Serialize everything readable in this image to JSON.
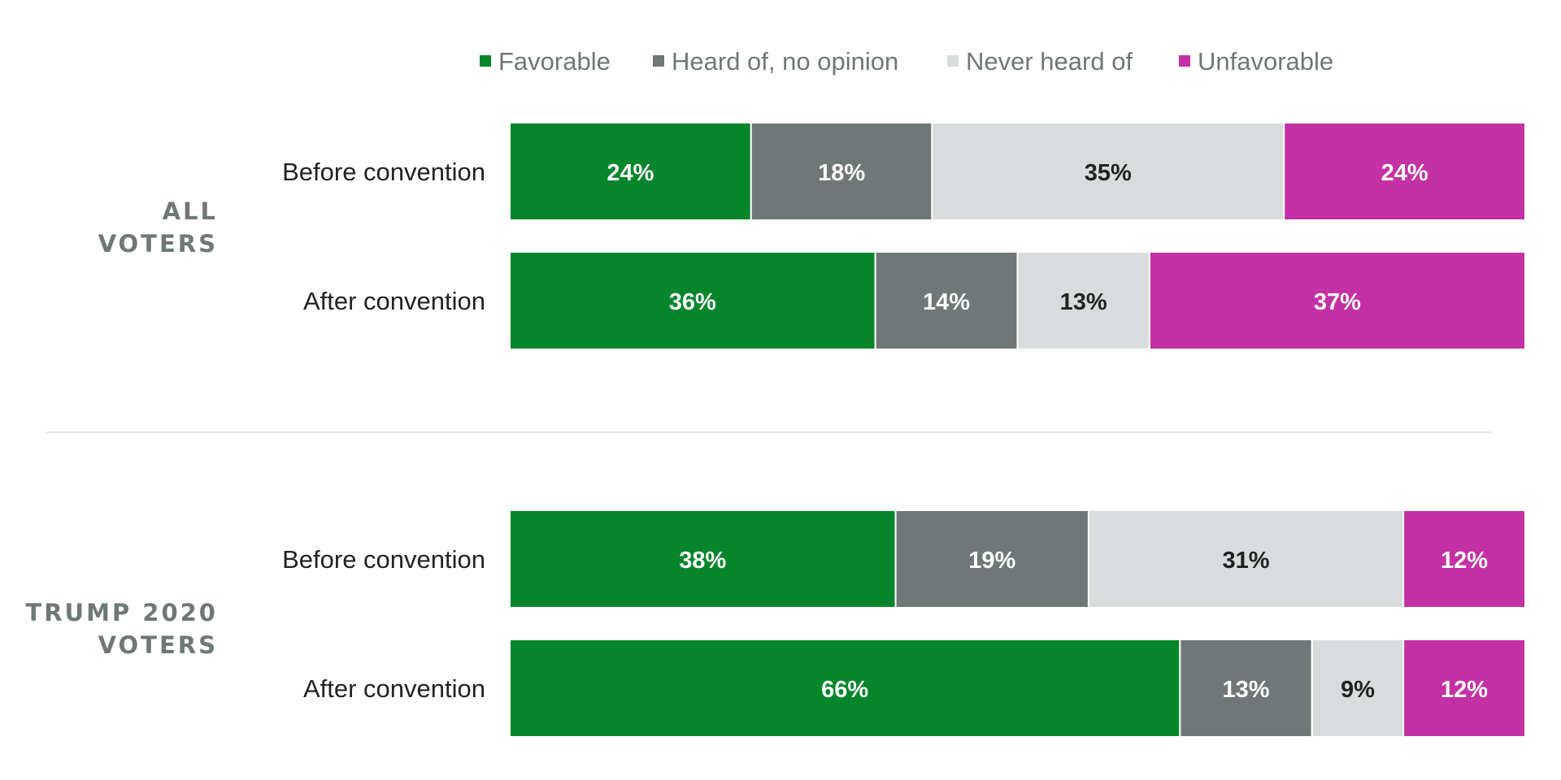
{
  "chart_data": {
    "type": "bar",
    "orientation": "horizontal",
    "stacked": true,
    "xlim": [
      0,
      100
    ],
    "legend_position": "top",
    "categories_order": [
      "Favorable",
      "Heard of, no opinion",
      "Never heard of",
      "Unfavorable"
    ],
    "colors": {
      "Favorable": "#05862a",
      "Heard of, no opinion": "#6f7777",
      "Never heard of": "#d8dcdc",
      "Unfavorable": "#c431a5"
    },
    "label_colors": {
      "Favorable": "#ffffff",
      "Heard of, no opinion": "#ffffff",
      "Never heard of": "#222222",
      "Unfavorable": "#ffffff"
    },
    "groups": [
      {
        "name": "ALL VOTERS",
        "name_lines": [
          "ALL",
          "VOTERS"
        ],
        "rows": [
          {
            "label": "Before convention",
            "values": [
              24,
              18,
              35,
              24
            ],
            "labels": [
              "24%",
              "18%",
              "35%",
              "24%"
            ]
          },
          {
            "label": "After convention",
            "values": [
              36,
              14,
              13,
              37
            ],
            "labels": [
              "36%",
              "14%",
              "13%",
              "37%"
            ]
          }
        ]
      },
      {
        "name": "TRUMP 2020 VOTERS",
        "name_lines": [
          "TRUMP 2020",
          "VOTERS"
        ],
        "rows": [
          {
            "label": "Before convention",
            "values": [
              38,
              19,
              31,
              12
            ],
            "labels": [
              "38%",
              "19%",
              "31%",
              "12%"
            ]
          },
          {
            "label": "After convention",
            "values": [
              66,
              13,
              9,
              12
            ],
            "labels": [
              "66%",
              "13%",
              "9%",
              "12%"
            ]
          }
        ]
      }
    ]
  }
}
